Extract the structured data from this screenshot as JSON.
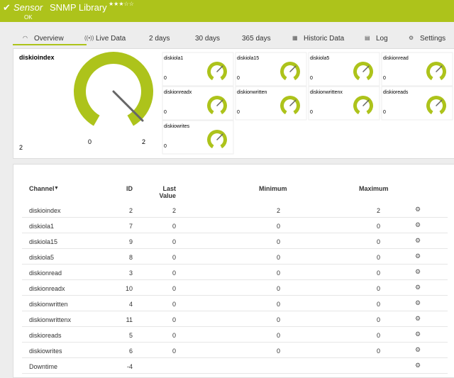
{
  "header": {
    "prefix": "Sensor",
    "title": "SNMP Library",
    "status": "OK"
  },
  "tabs": [
    "Overview",
    "Live Data",
    "2 days",
    "30 days",
    "365 days",
    "Historic Data",
    "Log",
    "Settings"
  ],
  "main_gauge": {
    "name": "diskioindex",
    "value": "2",
    "min": "0",
    "max": "2"
  },
  "small_gauges": [
    {
      "name": "diskiola1",
      "value": "0"
    },
    {
      "name": "diskiola15",
      "value": "0"
    },
    {
      "name": "diskiola5",
      "value": "0"
    },
    {
      "name": "diskionread",
      "value": "0"
    },
    {
      "name": "diskionreadx",
      "value": "0"
    },
    {
      "name": "diskionwritten",
      "value": "0"
    },
    {
      "name": "diskionwrittenx",
      "value": "0"
    },
    {
      "name": "diskioreads",
      "value": "0"
    },
    {
      "name": "diskiowrites",
      "value": "0"
    }
  ],
  "table": {
    "headers": [
      "Channel",
      "ID",
      "Last Value",
      "Minimum",
      "Maximum"
    ],
    "rows": [
      [
        "diskioindex",
        "2",
        "2",
        "2",
        "2"
      ],
      [
        "diskiola1",
        "7",
        "0",
        "0",
        "0"
      ],
      [
        "diskiola15",
        "9",
        "0",
        "0",
        "0"
      ],
      [
        "diskiola5",
        "8",
        "0",
        "0",
        "0"
      ],
      [
        "diskionread",
        "3",
        "0",
        "0",
        "0"
      ],
      [
        "diskionreadx",
        "10",
        "0",
        "0",
        "0"
      ],
      [
        "diskionwritten",
        "4",
        "0",
        "0",
        "0"
      ],
      [
        "diskionwrittenx",
        "11",
        "0",
        "0",
        "0"
      ],
      [
        "diskioreads",
        "5",
        "0",
        "0",
        "0"
      ],
      [
        "diskiowrites",
        "6",
        "0",
        "0",
        "0"
      ],
      [
        "Downtime",
        "-4",
        "",
        "",
        ""
      ]
    ]
  }
}
